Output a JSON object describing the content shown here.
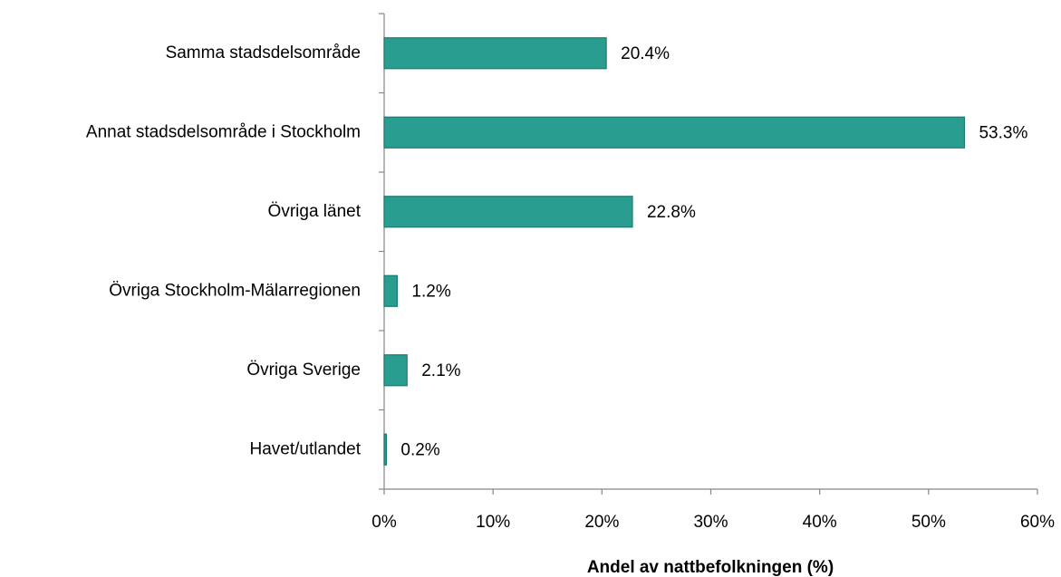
{
  "chart_data": {
    "type": "bar",
    "orientation": "horizontal",
    "x_label": "Andel av nattbefolkningen (%)",
    "categories": [
      "Samma stadsdelsområde",
      "Annat stadsdelsområde i Stockholm",
      "Övriga länet",
      "Övriga Stockholm-Mälarregionen",
      "Övriga Sverige",
      "Havet/utlandet"
    ],
    "values": [
      20.4,
      53.3,
      22.8,
      1.2,
      2.1,
      0.2
    ],
    "value_labels": [
      "20.4%",
      "53.3%",
      "22.8%",
      "1.2%",
      "2.1%",
      "0.2%"
    ],
    "color": "#2a9d91",
    "xlim": [
      0,
      60
    ],
    "xticks": [
      {
        "value": 0,
        "label": "0%"
      },
      {
        "value": 10,
        "label": "10%"
      },
      {
        "value": 20,
        "label": "20%"
      },
      {
        "value": 30,
        "label": "30%"
      },
      {
        "value": 40,
        "label": "40%"
      },
      {
        "value": 50,
        "label": "50%"
      },
      {
        "value": 60,
        "label": "60%"
      }
    ],
    "grid": false
  }
}
